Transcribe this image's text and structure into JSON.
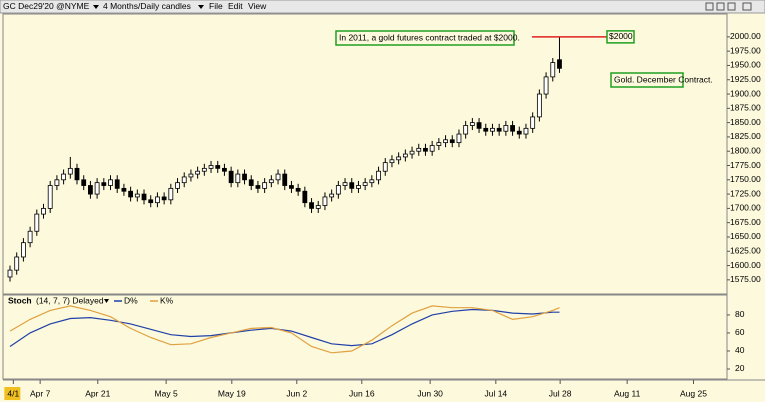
{
  "toolbar": {
    "symbol": "GC Dec29'20 @NYME",
    "timeframe": "4 Months/Daily candles",
    "menus": [
      "File",
      "Edit",
      "View"
    ]
  },
  "chart_data": [
    {
      "type": "candlestick",
      "x": [
        0,
        1,
        2,
        3,
        4,
        5,
        6,
        7,
        8,
        9,
        10,
        11,
        12,
        13,
        14,
        15,
        16,
        17,
        18,
        19,
        20,
        21,
        22,
        23,
        24,
        25,
        26,
        27,
        28,
        29,
        30,
        31,
        32,
        33,
        34,
        35,
        36,
        37,
        38,
        39,
        40,
        41,
        42,
        43,
        44,
        45,
        46,
        47,
        48,
        49,
        50,
        51,
        52,
        53,
        54,
        55,
        56,
        57,
        58,
        59,
        60,
        61,
        62,
        63,
        64,
        65,
        66,
        67,
        68,
        69,
        70,
        71,
        72,
        73,
        74,
        75,
        76,
        77,
        78,
        79,
        80,
        81,
        82
      ],
      "open": [
        1580,
        1592,
        1615,
        1640,
        1660,
        1690,
        1700,
        1740,
        1750,
        1760,
        1770,
        1750,
        1740,
        1725,
        1745,
        1740,
        1750,
        1735,
        1730,
        1720,
        1725,
        1715,
        1710,
        1720,
        1715,
        1735,
        1745,
        1755,
        1760,
        1765,
        1770,
        1775,
        1770,
        1765,
        1745,
        1760,
        1750,
        1740,
        1735,
        1745,
        1750,
        1760,
        1740,
        1735,
        1730,
        1710,
        1700,
        1705,
        1720,
        1725,
        1740,
        1745,
        1735,
        1740,
        1745,
        1750,
        1765,
        1780,
        1785,
        1790,
        1795,
        1800,
        1805,
        1800,
        1810,
        1815,
        1820,
        1815,
        1830,
        1845,
        1850,
        1840,
        1835,
        1840,
        1835,
        1845,
        1835,
        1830,
        1840,
        1860,
        1900,
        1930,
        1960
      ],
      "high": [
        1600,
        1623,
        1648,
        1668,
        1698,
        1708,
        1748,
        1758,
        1768,
        1790,
        1778,
        1758,
        1748,
        1753,
        1753,
        1758,
        1758,
        1743,
        1738,
        1733,
        1733,
        1723,
        1728,
        1728,
        1743,
        1753,
        1763,
        1768,
        1773,
        1778,
        1783,
        1783,
        1778,
        1773,
        1768,
        1768,
        1758,
        1748,
        1753,
        1758,
        1768,
        1768,
        1748,
        1743,
        1738,
        1718,
        1713,
        1728,
        1733,
        1748,
        1753,
        1753,
        1748,
        1753,
        1758,
        1773,
        1788,
        1793,
        1798,
        1803,
        1808,
        1813,
        1813,
        1818,
        1823,
        1828,
        1828,
        1838,
        1853,
        1858,
        1858,
        1848,
        1848,
        1848,
        1853,
        1853,
        1843,
        1848,
        1868,
        1908,
        1938,
        1963,
        2000
      ],
      "low": [
        1572,
        1584,
        1607,
        1632,
        1652,
        1682,
        1692,
        1732,
        1742,
        1752,
        1742,
        1732,
        1717,
        1717,
        1732,
        1732,
        1727,
        1722,
        1712,
        1712,
        1707,
        1702,
        1702,
        1707,
        1707,
        1727,
        1737,
        1747,
        1752,
        1757,
        1762,
        1762,
        1757,
        1737,
        1737,
        1742,
        1732,
        1727,
        1727,
        1737,
        1742,
        1732,
        1727,
        1722,
        1702,
        1692,
        1692,
        1697,
        1712,
        1717,
        1732,
        1727,
        1727,
        1732,
        1737,
        1742,
        1757,
        1772,
        1777,
        1782,
        1787,
        1792,
        1792,
        1792,
        1802,
        1807,
        1807,
        1807,
        1822,
        1837,
        1832,
        1827,
        1827,
        1827,
        1827,
        1827,
        1822,
        1822,
        1832,
        1852,
        1892,
        1922,
        1937
      ],
      "close": [
        1592,
        1615,
        1640,
        1660,
        1690,
        1700,
        1740,
        1750,
        1760,
        1770,
        1750,
        1740,
        1725,
        1745,
        1740,
        1750,
        1735,
        1730,
        1720,
        1725,
        1715,
        1710,
        1720,
        1715,
        1735,
        1745,
        1755,
        1760,
        1765,
        1770,
        1775,
        1770,
        1765,
        1745,
        1760,
        1750,
        1740,
        1735,
        1745,
        1750,
        1760,
        1740,
        1735,
        1730,
        1710,
        1700,
        1705,
        1720,
        1725,
        1740,
        1745,
        1735,
        1740,
        1745,
        1750,
        1765,
        1780,
        1785,
        1790,
        1795,
        1800,
        1805,
        1800,
        1810,
        1815,
        1820,
        1815,
        1830,
        1845,
        1850,
        1840,
        1835,
        1840,
        1835,
        1845,
        1835,
        1830,
        1840,
        1860,
        1900,
        1930,
        1955,
        1945
      ],
      "up_color": "#ffffff",
      "down_color": "#000000",
      "xlim": [
        -1,
        107
      ],
      "xticks": [
        {
          "value": 0.5,
          "label": "4/1"
        },
        {
          "value": 4.5,
          "label": "Apr 7"
        },
        {
          "value": 13.1,
          "label": "Apr 21"
        },
        {
          "value": 23.3,
          "label": "May 5"
        },
        {
          "value": 33.1,
          "label": "May 19"
        },
        {
          "value": 42.8,
          "label": "Jun 2"
        },
        {
          "value": 52.5,
          "label": "Jun 16"
        },
        {
          "value": 62.7,
          "label": "Jun 30"
        },
        {
          "value": 72.5,
          "label": "Jul 14"
        },
        {
          "value": 82.1,
          "label": "Jul 28"
        },
        {
          "value": 92.1,
          "label": "Aug 11"
        },
        {
          "value": 102,
          "label": "Aug 25"
        }
      ],
      "ylim": [
        1552,
        2040
      ],
      "yticks": [
        {
          "value": 1575,
          "label": "1575.00"
        },
        {
          "value": 1600,
          "label": "1600.00"
        },
        {
          "value": 1625,
          "label": "1625.00"
        },
        {
          "value": 1650,
          "label": "1650.00"
        },
        {
          "value": 1675,
          "label": "1675.00"
        },
        {
          "value": 1700,
          "label": "1700.00"
        },
        {
          "value": 1725,
          "label": "1725.00"
        },
        {
          "value": 1750,
          "label": "1750.00"
        },
        {
          "value": 1775,
          "label": "1775.00"
        },
        {
          "value": 1800,
          "label": "1800.00"
        },
        {
          "value": 1825,
          "label": "1825.00"
        },
        {
          "value": 1850,
          "label": "1850.00"
        },
        {
          "value": 1875,
          "label": "1875.00"
        },
        {
          "value": 1900,
          "label": "1900.00"
        },
        {
          "value": 1925,
          "label": "1925.00"
        },
        {
          "value": 1950,
          "label": "1950.00"
        },
        {
          "value": 1975,
          "label": "1975.00"
        },
        {
          "value": 2000,
          "label": "2000.00"
        }
      ],
      "annotations": [
        "In 2011, a gold futures contract traded at $2000.",
        "Gold. December Contract."
      ],
      "price_line": {
        "value": 2000,
        "label": "$2000",
        "color": "#e02020"
      }
    },
    {
      "type": "line",
      "title": "Stoch",
      "subtitle": "(14, 7, 7) Delayed",
      "x": [
        0,
        3,
        6,
        9,
        12,
        15,
        18,
        21,
        24,
        27,
        30,
        33,
        36,
        39,
        42,
        45,
        48,
        51,
        54,
        57,
        60,
        63,
        66,
        69,
        72,
        75,
        78,
        81,
        82
      ],
      "series": [
        {
          "name": "D%",
          "color": "#2040a8",
          "values": [
            45,
            60,
            70,
            76,
            77,
            74,
            70,
            64,
            58,
            56,
            57,
            60,
            63,
            65,
            62,
            55,
            48,
            46,
            48,
            58,
            70,
            80,
            84,
            86,
            85,
            82,
            81,
            83,
            83
          ]
        },
        {
          "name": "K%",
          "color": "#e0a040",
          "values": [
            62,
            75,
            85,
            90,
            85,
            78,
            65,
            55,
            47,
            48,
            55,
            60,
            65,
            66,
            60,
            45,
            38,
            40,
            52,
            68,
            82,
            90,
            88,
            88,
            85,
            75,
            78,
            85,
            88
          ]
        }
      ],
      "xlim": [
        -1,
        107
      ],
      "ylim": [
        10,
        101
      ],
      "yticks": [
        20,
        40,
        60,
        80
      ]
    }
  ]
}
